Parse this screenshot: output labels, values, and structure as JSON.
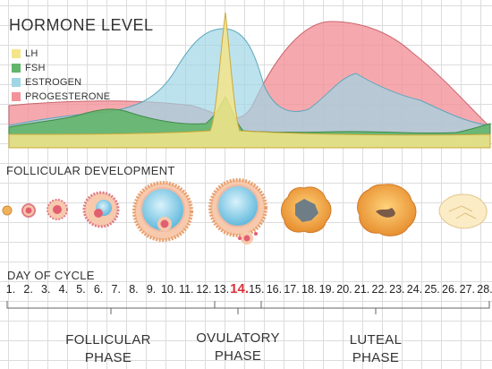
{
  "header": {
    "title": "HORMONE LEVEL"
  },
  "legend": [
    {
      "label": "LH",
      "color": "#f4e58a"
    },
    {
      "label": "FSH",
      "color": "#62b56b"
    },
    {
      "label": "ESTROGEN",
      "color": "#9fd6e6"
    },
    {
      "label": "PROGESTERONE",
      "color": "#f3939a"
    }
  ],
  "follicular": {
    "title": "FOLLICULAR DEVELOPMENT"
  },
  "cycle": {
    "title": "DAY OF CYCLE",
    "days": [
      "1.",
      "2.",
      "3.",
      "4.",
      "5.",
      "6.",
      "7.",
      "8.",
      "9.",
      "10.",
      "11.",
      "12.",
      "13.",
      "14.",
      "15.",
      "16.",
      "17.",
      "18.",
      "19.",
      "20.",
      "21.",
      "22.",
      "23.",
      "24.",
      "25.",
      "26.",
      "27.",
      "28."
    ],
    "highlight": "14."
  },
  "phases": {
    "follicular_line1": "FOLLICULAR",
    "follicular_line2": "PHASE",
    "ovulatory_line1": "OVULATORY",
    "ovulatory_line2": "PHASE",
    "luteal_line1": "LUTEAL",
    "luteal_line2": "PHASE"
  }
}
